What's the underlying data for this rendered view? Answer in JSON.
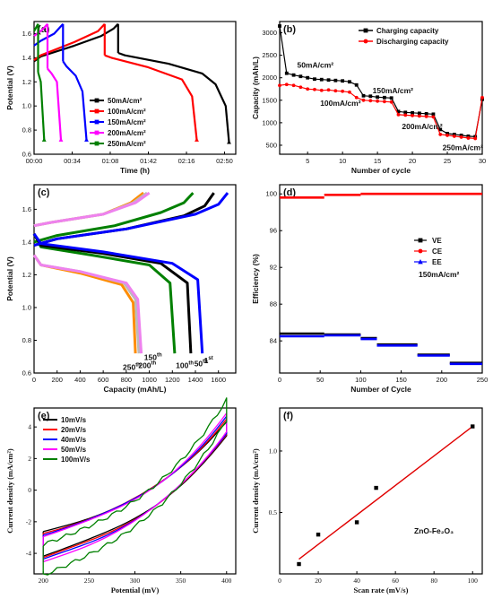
{
  "chart_data": [
    {
      "panel": "(a)",
      "type": "line",
      "xlabel": "Time (h)",
      "ylabel": "Potential (V)",
      "xlim": [
        0,
        3.0
      ],
      "ylim": [
        0.6,
        1.7
      ],
      "x_ticks": [
        "00:00",
        "00:34",
        "01:08",
        "01:42",
        "02:16",
        "02:50"
      ],
      "y_ticks": [
        "0.6",
        "0.8",
        "1.0",
        "1.2",
        "1.4",
        "1.6"
      ],
      "legend_position": "right",
      "series": [
        {
          "name": "50mA/cm²",
          "color": "#000000",
          "charge": [
            [
              0,
              1.37
            ],
            [
              0.1,
              1.41
            ],
            [
              0.6,
              1.5
            ],
            [
              1.0,
              1.58
            ],
            [
              1.18,
              1.64
            ],
            [
              1.25,
              1.68
            ]
          ],
          "discharge": [
            [
              1.25,
              1.44
            ],
            [
              1.35,
              1.42
            ],
            [
              2.0,
              1.35
            ],
            [
              2.5,
              1.27
            ],
            [
              2.7,
              1.18
            ],
            [
              2.85,
              1.0
            ],
            [
              2.9,
              0.7
            ]
          ]
        },
        {
          "name": "100mA/cm²",
          "color": "#ff0000",
          "charge": [
            [
              0,
              1.38
            ],
            [
              0.1,
              1.42
            ],
            [
              0.6,
              1.53
            ],
            [
              0.95,
              1.62
            ],
            [
              1.05,
              1.68
            ]
          ],
          "discharge": [
            [
              1.05,
              1.42
            ],
            [
              1.15,
              1.4
            ],
            [
              1.7,
              1.32
            ],
            [
              2.2,
              1.22
            ],
            [
              2.35,
              1.08
            ],
            [
              2.42,
              0.72
            ]
          ]
        },
        {
          "name": "150mA/cm²",
          "color": "#0000ff",
          "charge": [
            [
              0,
              1.5
            ],
            [
              0.1,
              1.54
            ],
            [
              0.3,
              1.6
            ],
            [
              0.43,
              1.68
            ]
          ],
          "discharge": [
            [
              0.43,
              1.37
            ],
            [
              0.48,
              1.33
            ],
            [
              0.62,
              1.25
            ],
            [
              0.72,
              1.12
            ],
            [
              0.78,
              0.72
            ]
          ]
        },
        {
          "name": "200mA/cm²",
          "color": "#ff00ff",
          "charge": [
            [
              0,
              1.58
            ],
            [
              0.12,
              1.63
            ],
            [
              0.2,
              1.68
            ]
          ],
          "discharge": [
            [
              0.2,
              1.31
            ],
            [
              0.26,
              1.27
            ],
            [
              0.34,
              1.2
            ],
            [
              0.4,
              0.72
            ]
          ]
        },
        {
          "name": "250mA/cm²",
          "color": "#008000",
          "charge": [
            [
              0,
              1.62
            ],
            [
              0.06,
              1.68
            ]
          ],
          "discharge": [
            [
              0.06,
              1.28
            ],
            [
              0.1,
              1.2
            ],
            [
              0.15,
              0.72
            ]
          ]
        }
      ]
    },
    {
      "panel": "(b)",
      "type": "line",
      "xlabel": "Number of cycle",
      "ylabel": "Capacity (mAh/L)",
      "xlim": [
        1,
        30
      ],
      "ylim": [
        300,
        3250
      ],
      "x_ticks": [
        5,
        10,
        15,
        20,
        25,
        30
      ],
      "y_ticks": [
        500,
        1000,
        1500,
        2000,
        2500,
        3000
      ],
      "legend_position": "top-right",
      "annotations": [
        "50mA/cm²",
        "150mA/cm²",
        "100mA/cm²",
        "200mA/cm²",
        "250mA/cm²"
      ],
      "series": [
        {
          "name": "Charging capacity",
          "color": "#000000",
          "marker": "square",
          "x": [
            1,
            2,
            3,
            4,
            5,
            6,
            7,
            8,
            9,
            10,
            11,
            12,
            13,
            14,
            15,
            16,
            17,
            18,
            19,
            20,
            21,
            22,
            23,
            24,
            25,
            26,
            27,
            28,
            29,
            30
          ],
          "values": [
            3150,
            2100,
            2060,
            2030,
            2000,
            1970,
            1960,
            1950,
            1940,
            1930,
            1910,
            1840,
            1600,
            1590,
            1570,
            1560,
            1550,
            1250,
            1230,
            1220,
            1210,
            1200,
            1190,
            850,
            760,
            740,
            720,
            700,
            690,
            1520
          ]
        },
        {
          "name": "Discharging capacity",
          "color": "#ff0000",
          "marker": "circle",
          "x": [
            1,
            2,
            3,
            4,
            5,
            6,
            7,
            8,
            9,
            10,
            11,
            12,
            13,
            14,
            15,
            16,
            17,
            18,
            19,
            20,
            21,
            22,
            23,
            24,
            25,
            26,
            27,
            28,
            29,
            30
          ],
          "values": [
            1830,
            1850,
            1830,
            1790,
            1750,
            1740,
            1720,
            1730,
            1710,
            1700,
            1680,
            1560,
            1500,
            1490,
            1480,
            1470,
            1460,
            1180,
            1170,
            1160,
            1150,
            1140,
            1130,
            740,
            720,
            700,
            680,
            660,
            650,
            1560
          ]
        }
      ]
    },
    {
      "panel": "(c)",
      "type": "line",
      "xlabel": "Capacity (mAh/L)",
      "ylabel": "Potential (V)",
      "xlim": [
        0,
        1750
      ],
      "ylim": [
        0.6,
        1.75
      ],
      "x_ticks": [
        0,
        200,
        400,
        600,
        800,
        1000,
        1200,
        1400,
        1600
      ],
      "y_ticks": [
        "0.6",
        "0.8",
        "1.0",
        "1.2",
        "1.4",
        "1.6"
      ],
      "labels": [
        {
          "text": "1",
          "sup": "st"
        },
        {
          "text": "50",
          "sup": "th"
        },
        {
          "text": "100",
          "sup": "th"
        },
        {
          "text": "150",
          "sup": "th"
        },
        {
          "text": "200",
          "sup": "th"
        },
        {
          "text": "250",
          "sup": "th"
        }
      ],
      "series": [
        {
          "name": "1st",
          "color": "#0000ff",
          "charge": [
            [
              0,
              1.38
            ],
            [
              200,
              1.42
            ],
            [
              800,
              1.48
            ],
            [
              1400,
              1.57
            ],
            [
              1600,
              1.63
            ],
            [
              1680,
              1.7
            ]
          ],
          "discharge": [
            [
              0,
              1.45
            ],
            [
              60,
              1.39
            ],
            [
              600,
              1.34
            ],
            [
              1200,
              1.27
            ],
            [
              1420,
              1.17
            ],
            [
              1460,
              0.72
            ]
          ]
        },
        {
          "name": "50th",
          "color": "#000000",
          "charge": [
            [
              0,
              1.38
            ],
            [
              200,
              1.42
            ],
            [
              800,
              1.48
            ],
            [
              1300,
              1.56
            ],
            [
              1480,
              1.62
            ],
            [
              1560,
              1.7
            ]
          ],
          "discharge": [
            [
              0,
              1.45
            ],
            [
              60,
              1.38
            ],
            [
              600,
              1.33
            ],
            [
              1100,
              1.27
            ],
            [
              1330,
              1.15
            ],
            [
              1360,
              0.72
            ]
          ]
        },
        {
          "name": "100th",
          "color": "#008000",
          "charge": [
            [
              0,
              1.4
            ],
            [
              200,
              1.44
            ],
            [
              700,
              1.5
            ],
            [
              1100,
              1.58
            ],
            [
              1300,
              1.64
            ],
            [
              1380,
              1.7
            ]
          ],
          "discharge": [
            [
              0,
              1.45
            ],
            [
              60,
              1.37
            ],
            [
              500,
              1.32
            ],
            [
              1000,
              1.26
            ],
            [
              1180,
              1.15
            ],
            [
              1220,
              0.72
            ]
          ]
        },
        {
          "name": "150th",
          "color": "#ee82ee",
          "charge": [
            [
              0,
              1.5
            ],
            [
              150,
              1.52
            ],
            [
              600,
              1.57
            ],
            [
              880,
              1.64
            ],
            [
              1000,
              1.7
            ]
          ],
          "discharge": [
            [
              0,
              1.32
            ],
            [
              60,
              1.26
            ],
            [
              400,
              1.22
            ],
            [
              800,
              1.15
            ],
            [
              900,
              1.05
            ],
            [
              930,
              0.72
            ]
          ]
        },
        {
          "name": "200th",
          "color": "#bbbbbb",
          "charge": [
            [
              0,
              1.5
            ],
            [
              150,
              1.52
            ],
            [
              600,
              1.57
            ],
            [
              860,
              1.64
            ],
            [
              980,
              1.7
            ]
          ],
          "discharge": [
            [
              0,
              1.32
            ],
            [
              60,
              1.26
            ],
            [
              400,
              1.22
            ],
            [
              780,
              1.15
            ],
            [
              880,
              1.05
            ],
            [
              910,
              0.72
            ]
          ]
        },
        {
          "name": "250th",
          "color": "#ff8c00",
          "charge": [
            [
              0,
              1.5
            ],
            [
              150,
              1.52
            ],
            [
              600,
              1.57
            ],
            [
              840,
              1.64
            ],
            [
              950,
              1.7
            ]
          ],
          "discharge": [
            [
              0,
              1.32
            ],
            [
              60,
              1.26
            ],
            [
              400,
              1.21
            ],
            [
              760,
              1.14
            ],
            [
              860,
              1.03
            ],
            [
              880,
              0.72
            ]
          ]
        }
      ]
    },
    {
      "panel": "(d)",
      "type": "line",
      "xlabel": "Number of Cycle",
      "ylabel": "Efficiency (%)",
      "xlim": [
        0,
        250
      ],
      "ylim": [
        80.5,
        101
      ],
      "x_ticks": [
        0,
        50,
        100,
        150,
        200,
        250
      ],
      "y_ticks": [
        84,
        88,
        92,
        96,
        100
      ],
      "legend_position": "right",
      "annotation": "150mA/cm²",
      "series": [
        {
          "name": "VE",
          "color": "#000000",
          "marker": "square",
          "segments": [
            [
              0,
              55,
              84.8
            ],
            [
              55,
              100,
              84.7
            ],
            [
              100,
              120,
              84.3
            ],
            [
              120,
              170,
              83.6
            ],
            [
              170,
              210,
              82.5
            ],
            [
              210,
              250,
              81.6
            ]
          ]
        },
        {
          "name": "CE",
          "color": "#ff0000",
          "marker": "circle",
          "segments": [
            [
              0,
              55,
              99.6
            ],
            [
              55,
              100,
              99.9
            ],
            [
              100,
              250,
              100.0
            ]
          ]
        },
        {
          "name": "EE",
          "color": "#0000ff",
          "marker": "triangle",
          "segments": [
            [
              0,
              55,
              84.5
            ],
            [
              55,
              100,
              84.6
            ],
            [
              100,
              120,
              84.2
            ],
            [
              120,
              170,
              83.5
            ],
            [
              170,
              210,
              82.4
            ],
            [
              210,
              250,
              81.5
            ]
          ]
        }
      ]
    },
    {
      "panel": "(e)",
      "type": "line",
      "xlabel": "Potential (mV)",
      "ylabel": "Current density (mA/cm²)",
      "xlim": [
        190,
        410
      ],
      "ylim": [
        -5.3,
        5.2
      ],
      "x_ticks": [
        200,
        250,
        300,
        350,
        400
      ],
      "y_ticks": [
        -4,
        -2,
        0,
        2,
        4
      ],
      "legend_position": "top-left",
      "series": [
        {
          "name": "10mV/s",
          "color": "#000000",
          "amplitude": 1.0
        },
        {
          "name": "20mV/s",
          "color": "#ff0000",
          "amplitude": 1.03
        },
        {
          "name": "40mV/s",
          "color": "#0000ff",
          "amplitude": 1.06
        },
        {
          "name": "50mV/s",
          "color": "#ff00ff",
          "amplitude": 1.1
        },
        {
          "name": "100mV/s",
          "color": "#008000",
          "amplitude": 1.3
        }
      ]
    },
    {
      "panel": "(f)",
      "type": "scatter",
      "xlabel": "Scan rate (mV/s)",
      "ylabel": "Current density (mA/cm²)",
      "xlim": [
        0,
        105
      ],
      "ylim": [
        0.0,
        1.35
      ],
      "x_ticks": [
        0,
        20,
        40,
        60,
        80,
        100
      ],
      "y_ticks": [
        "0.5",
        "1.0"
      ],
      "annotation": "ZnO-Fe₂O₃",
      "points": {
        "x": [
          10,
          20,
          40,
          50,
          100
        ],
        "y": [
          0.08,
          0.32,
          0.42,
          0.7,
          1.2
        ]
      },
      "fit_line": {
        "x": [
          10,
          100
        ],
        "y": [
          0.12,
          1.2
        ],
        "color": "#e00000"
      }
    }
  ]
}
